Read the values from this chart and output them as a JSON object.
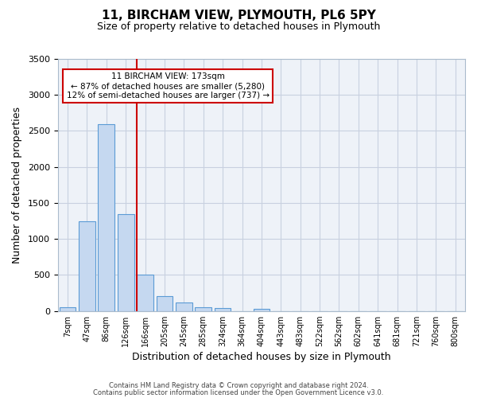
{
  "title_line1": "11, BIRCHAM VIEW, PLYMOUTH, PL6 5PY",
  "title_line2": "Size of property relative to detached houses in Plymouth",
  "xlabel": "Distribution of detached houses by size in Plymouth",
  "ylabel": "Number of detached properties",
  "bin_labels": [
    "7sqm",
    "47sqm",
    "86sqm",
    "126sqm",
    "166sqm",
    "205sqm",
    "245sqm",
    "285sqm",
    "324sqm",
    "364sqm",
    "404sqm",
    "443sqm",
    "483sqm",
    "522sqm",
    "562sqm",
    "602sqm",
    "641sqm",
    "681sqm",
    "721sqm",
    "760sqm",
    "800sqm"
  ],
  "bar_values": [
    50,
    1240,
    2590,
    1350,
    500,
    210,
    115,
    50,
    40,
    0,
    30,
    0,
    0,
    0,
    0,
    0,
    0,
    0,
    0,
    0,
    0
  ],
  "bar_color": "#c5d8f0",
  "bar_edge_color": "#5b9bd5",
  "background_color": "#eef2f8",
  "grid_color": "#c8d0e0",
  "vline_x_index": 4,
  "vline_color": "#cc0000",
  "annotation_line1": "11 BIRCHAM VIEW: 173sqm",
  "annotation_line2": "← 87% of detached houses are smaller (5,280)",
  "annotation_line3": "12% of semi-detached houses are larger (737) →",
  "annotation_box_color": "#cc0000",
  "ylim": [
    0,
    3500
  ],
  "yticks": [
    0,
    500,
    1000,
    1500,
    2000,
    2500,
    3000,
    3500
  ],
  "footer_line1": "Contains HM Land Registry data © Crown copyright and database right 2024.",
  "footer_line2": "Contains public sector information licensed under the Open Government Licence v3.0."
}
